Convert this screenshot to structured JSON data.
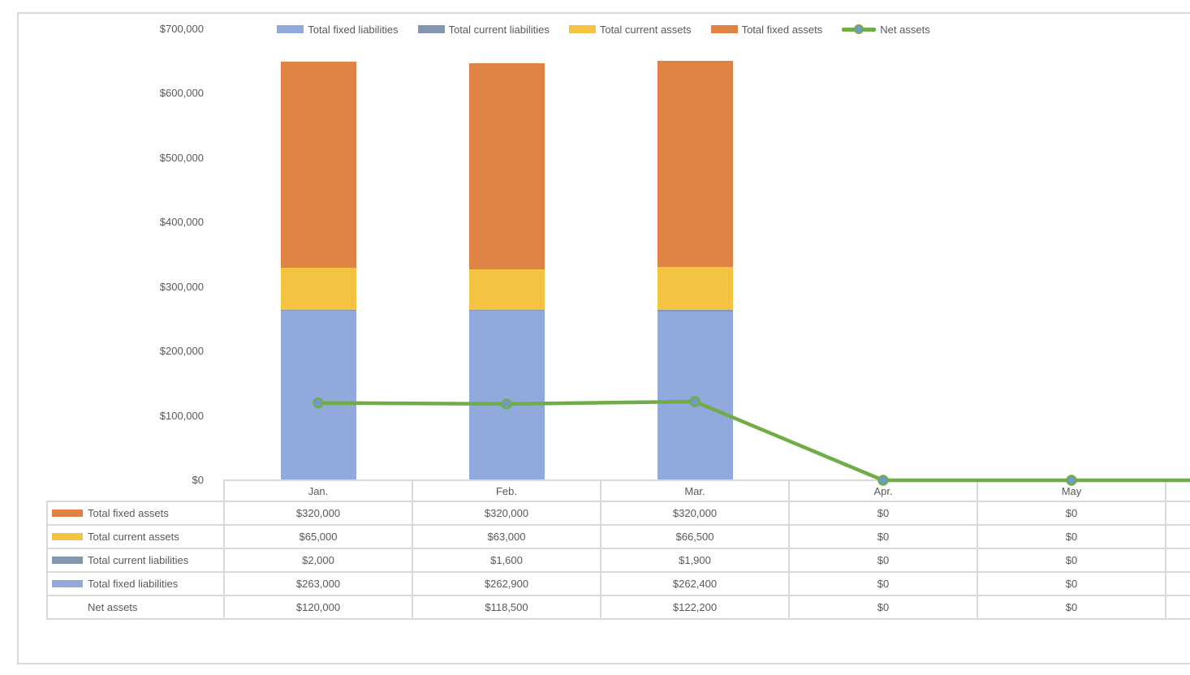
{
  "chart_data": {
    "type": "combo-stacked-bar-line",
    "title": "",
    "categories": [
      "Jan.",
      "Feb.",
      "Mar.",
      "Apr.",
      "May"
    ],
    "extra_clipped_column": true,
    "bar_series": [
      {
        "name": "Total fixed liabilities",
        "color": "#92A9DB",
        "values": [
          263000,
          262900,
          262400,
          0,
          0
        ]
      },
      {
        "name": "Total current liabilities",
        "color": "#8496B0",
        "values": [
          2000,
          1600,
          1900,
          0,
          0
        ]
      },
      {
        "name": "Total current assets",
        "color": "#F5C342",
        "values": [
          65000,
          63000,
          66500,
          0,
          0
        ]
      },
      {
        "name": "Total fixed assets",
        "color": "#DE8344",
        "values": [
          320000,
          320000,
          320000,
          0,
          0
        ]
      }
    ],
    "line_series": {
      "name": "Net assets",
      "color": "#70AD47",
      "marker_fill": "#6D9BD1",
      "values": [
        120000,
        118500,
        122200,
        0,
        0
      ]
    },
    "y_axis": {
      "min": 0,
      "max": 700000,
      "step": 100000,
      "tick_labels": [
        "$0",
        "$100,000",
        "$200,000",
        "$300,000",
        "$400,000",
        "$500,000",
        "$600,000",
        "$700,000"
      ]
    },
    "legend": {
      "position": "top",
      "items": [
        {
          "label": "Total fixed liabilities",
          "type": "box",
          "color": "#92A9DB"
        },
        {
          "label": "Total current liabilities",
          "type": "box",
          "color": "#8496B0"
        },
        {
          "label": "Total current assets",
          "type": "box",
          "color": "#F5C342"
        },
        {
          "label": "Total fixed assets",
          "type": "box",
          "color": "#DE8344"
        },
        {
          "label": "Net assets",
          "type": "line",
          "color": "#70AD47",
          "marker_fill": "#6D9BD1"
        }
      ]
    },
    "gridlines": false,
    "data_table": {
      "column_headers": [
        "Jan.",
        "Feb.",
        "Mar.",
        "Apr.",
        "May"
      ],
      "rows": [
        {
          "label": "Total fixed assets",
          "key_type": "box",
          "color": "#DE8344",
          "values": [
            "$320,000",
            "$320,000",
            "$320,000",
            "$0",
            "$0"
          ]
        },
        {
          "label": "Total current assets",
          "key_type": "box",
          "color": "#F5C342",
          "values": [
            "$65,000",
            "$63,000",
            "$66,500",
            "$0",
            "$0"
          ]
        },
        {
          "label": "Total current liabilities",
          "key_type": "box",
          "color": "#8496B0",
          "values": [
            "$2,000",
            "$1,600",
            "$1,900",
            "$0",
            "$0"
          ]
        },
        {
          "label": "Total fixed liabilities",
          "key_type": "box",
          "color": "#92A9DB",
          "values": [
            "$263,000",
            "$262,900",
            "$262,400",
            "$0",
            "$0"
          ]
        },
        {
          "label": "Net assets",
          "key_type": "line",
          "color": "#70AD47",
          "marker_fill": "#6D9BD1",
          "values": [
            "$120,000",
            "$118,500",
            "$122,200",
            "$0",
            "$0"
          ]
        }
      ]
    },
    "colors": {
      "border_gray": "#D9D9D9",
      "text_gray": "#595959"
    }
  }
}
